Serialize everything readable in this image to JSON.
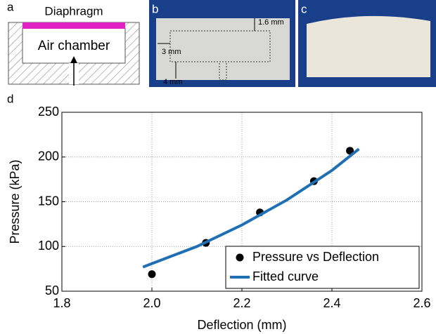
{
  "panels": {
    "a": {
      "label": "a",
      "top": "Diaphragm",
      "chamber": "Air chamber"
    },
    "b": {
      "label": "b",
      "dims": [
        "1.6 mm",
        "3 mm",
        "4 mm"
      ]
    },
    "c": {
      "label": "c"
    },
    "d": {
      "label": "d"
    }
  },
  "chart_data": {
    "type": "scatter",
    "xlabel": "Deflection (mm)",
    "ylabel": "Pressure (kPa)",
    "xlim": [
      1.8,
      2.6
    ],
    "ylim": [
      50,
      250
    ],
    "xticks": [
      1.8,
      {
        "value": 2,
        "label": "2.0"
      },
      2.2,
      2.4,
      2.6
    ],
    "yticks": [
      50,
      100,
      150,
      200,
      250
    ],
    "grid": true,
    "legend": "lower right",
    "series": [
      {
        "name": "Pressure vs Deflection",
        "type": "scatter",
        "color": "#000000",
        "x": [
          2.0,
          2.12,
          2.24,
          2.36,
          2.44
        ],
        "values": [
          69,
          104,
          138,
          173,
          207
        ]
      },
      {
        "name": "Fitted curve",
        "type": "line",
        "color": "#1f6fb4",
        "x": [
          1.98,
          2.1,
          2.2,
          2.3,
          2.4,
          2.46
        ],
        "values": [
          77,
          100,
          124,
          152,
          185,
          209
        ]
      }
    ]
  }
}
